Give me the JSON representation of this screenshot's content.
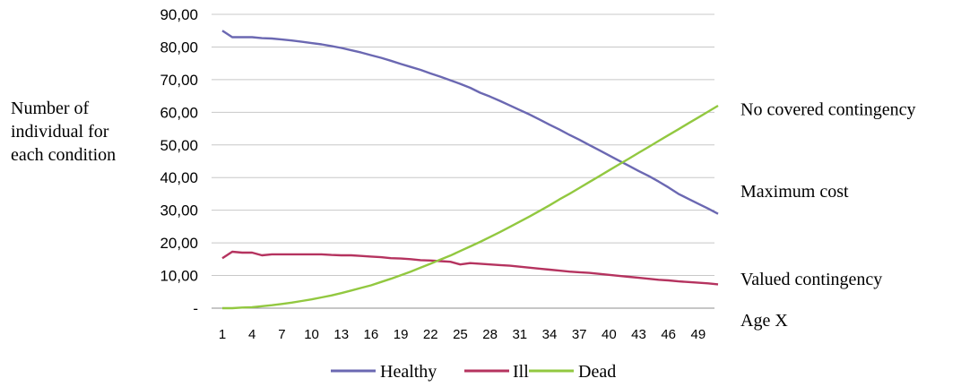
{
  "chart_data": {
    "type": "line",
    "title": "",
    "ylabel_lines": [
      "Number of",
      "individual for",
      "each condition"
    ],
    "xlabel": "Age X",
    "ylim": [
      0,
      90
    ],
    "y_ticks": [
      "-",
      "10,00",
      "20,00",
      "30,00",
      "40,00",
      "50,00",
      "60,00",
      "70,00",
      "80,00",
      "90,00"
    ],
    "y_tick_values": [
      0,
      10,
      20,
      30,
      40,
      50,
      60,
      70,
      80,
      90
    ],
    "x_range": [
      1,
      51
    ],
    "x_ticks": [
      1,
      4,
      7,
      10,
      13,
      16,
      19,
      22,
      25,
      28,
      31,
      34,
      37,
      40,
      43,
      46,
      49
    ],
    "grid": true,
    "legend_position": "bottom",
    "right_annotations": [
      {
        "text": "No covered contingency",
        "value": 61
      },
      {
        "text": "Maximum cost",
        "value": 36
      },
      {
        "text": "Valued contingency",
        "value": 9
      }
    ],
    "x": [
      1,
      2,
      3,
      4,
      5,
      6,
      7,
      8,
      9,
      10,
      11,
      12,
      13,
      14,
      15,
      16,
      17,
      18,
      19,
      20,
      21,
      22,
      23,
      24,
      25,
      26,
      27,
      28,
      29,
      30,
      31,
      32,
      33,
      34,
      35,
      36,
      37,
      38,
      39,
      40,
      41,
      42,
      43,
      44,
      45,
      46,
      47,
      48,
      49,
      50,
      51
    ],
    "series": [
      {
        "name": "Healthy",
        "color": "#6b68b2",
        "values": [
          85.0,
          83.0,
          83.0,
          83.0,
          82.7,
          82.6,
          82.3,
          82.0,
          81.6,
          81.2,
          80.8,
          80.3,
          79.7,
          79.0,
          78.3,
          77.5,
          76.7,
          75.8,
          74.8,
          73.9,
          73.0,
          71.9,
          70.9,
          69.8,
          68.7,
          67.5,
          66.0,
          64.8,
          63.5,
          62.1,
          60.7,
          59.3,
          57.8,
          56.2,
          54.7,
          53.1,
          51.6,
          50.0,
          48.4,
          46.8,
          45.2,
          43.6,
          42.0,
          40.5,
          38.8,
          37.0,
          35.0,
          33.5,
          32.0,
          30.5,
          28.9
        ]
      },
      {
        "name": "Ill",
        "color": "#b5335f",
        "values": [
          15.3,
          17.3,
          17.0,
          17.0,
          16.2,
          16.5,
          16.5,
          16.5,
          16.5,
          16.5,
          16.5,
          16.3,
          16.2,
          16.2,
          16.0,
          15.8,
          15.6,
          15.3,
          15.2,
          15.0,
          14.7,
          14.6,
          14.4,
          14.2,
          13.4,
          13.8,
          13.6,
          13.4,
          13.2,
          13.0,
          12.7,
          12.4,
          12.1,
          11.8,
          11.5,
          11.2,
          11.0,
          10.8,
          10.5,
          10.2,
          9.9,
          9.6,
          9.3,
          9.0,
          8.7,
          8.5,
          8.2,
          8.0,
          7.8,
          7.6,
          7.3
        ]
      },
      {
        "name": "Dead",
        "color": "#92c840",
        "values": [
          0.0,
          0.0,
          0.2,
          0.3,
          0.6,
          0.9,
          1.3,
          1.7,
          2.2,
          2.7,
          3.3,
          3.9,
          4.6,
          5.4,
          6.2,
          7.0,
          8.0,
          9.0,
          10.1,
          11.2,
          12.4,
          13.6,
          14.9,
          16.1,
          17.5,
          18.9,
          20.3,
          21.8,
          23.3,
          24.9,
          26.5,
          28.1,
          29.8,
          31.5,
          33.3,
          35.0,
          36.8,
          38.6,
          40.4,
          42.2,
          44.0,
          45.8,
          47.6,
          49.4,
          51.2,
          53.0,
          54.8,
          56.6,
          58.4,
          60.2,
          62.0
        ]
      }
    ]
  }
}
